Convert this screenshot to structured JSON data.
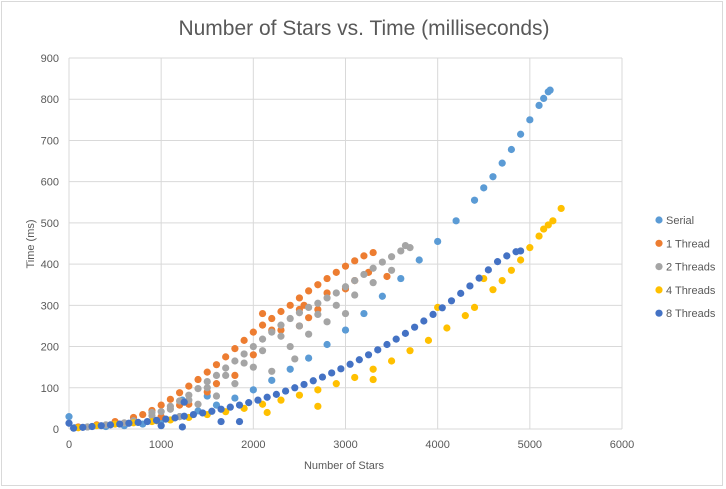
{
  "chart_data": {
    "type": "scatter",
    "title": "Number of Stars vs. Time (milliseconds)",
    "xlabel": "Number of Stars",
    "ylabel": "Time (ms)",
    "xlim": [
      0,
      6000
    ],
    "ylim": [
      0,
      900
    ],
    "xticks": [
      0,
      1000,
      2000,
      3000,
      4000,
      5000,
      6000
    ],
    "yticks": [
      0,
      100,
      200,
      300,
      400,
      500,
      600,
      700,
      800,
      900
    ],
    "grid": true,
    "legend_position": "right",
    "series": [
      {
        "name": "Serial",
        "color": "#5B9BD5",
        "points": [
          [
            60,
            3
          ],
          [
            200,
            5
          ],
          [
            400,
            6
          ],
          [
            600,
            8
          ],
          [
            800,
            12
          ],
          [
            1000,
            20
          ],
          [
            1200,
            30
          ],
          [
            1400,
            44
          ],
          [
            1600,
            58
          ],
          [
            1800,
            75
          ],
          [
            2000,
            95
          ],
          [
            2200,
            118
          ],
          [
            2400,
            145
          ],
          [
            2600,
            172
          ],
          [
            2800,
            205
          ],
          [
            3000,
            240
          ],
          [
            3200,
            280
          ],
          [
            3400,
            322
          ],
          [
            3600,
            365
          ],
          [
            3800,
            410
          ],
          [
            4000,
            455
          ],
          [
            4200,
            505
          ],
          [
            4400,
            555
          ],
          [
            4500,
            585
          ],
          [
            4600,
            612
          ],
          [
            4700,
            645
          ],
          [
            4800,
            678
          ],
          [
            4900,
            715
          ],
          [
            5000,
            750
          ],
          [
            5100,
            785
          ],
          [
            5150,
            802
          ],
          [
            5200,
            818
          ],
          [
            5220,
            822
          ],
          [
            0,
            30
          ],
          [
            1230,
            70
          ],
          [
            1500,
            80
          ]
        ]
      },
      {
        "name": "1 Thread",
        "color": "#ED7D31",
        "points": [
          [
            100,
            5
          ],
          [
            300,
            10
          ],
          [
            500,
            18
          ],
          [
            700,
            28
          ],
          [
            800,
            35
          ],
          [
            900,
            45
          ],
          [
            1000,
            58
          ],
          [
            1100,
            72
          ],
          [
            1200,
            88
          ],
          [
            1300,
            104
          ],
          [
            1400,
            120
          ],
          [
            1500,
            138
          ],
          [
            1600,
            156
          ],
          [
            1700,
            175
          ],
          [
            1800,
            195
          ],
          [
            1900,
            215
          ],
          [
            2000,
            235
          ],
          [
            2100,
            252
          ],
          [
            2200,
            268
          ],
          [
            2300,
            285
          ],
          [
            2400,
            300
          ],
          [
            2500,
            318
          ],
          [
            2600,
            335
          ],
          [
            2700,
            350
          ],
          [
            2800,
            365
          ],
          [
            2900,
            380
          ],
          [
            3000,
            395
          ],
          [
            3100,
            408
          ],
          [
            3200,
            420
          ],
          [
            3300,
            428
          ],
          [
            1000,
            30
          ],
          [
            1300,
            60
          ],
          [
            1600,
            110
          ],
          [
            2000,
            180
          ],
          [
            2100,
            280
          ],
          [
            2300,
            240
          ],
          [
            2500,
            250
          ],
          [
            2550,
            300
          ],
          [
            2700,
            290
          ],
          [
            2800,
            330
          ],
          [
            3000,
            340
          ],
          [
            3100,
            360
          ],
          [
            3250,
            380
          ],
          [
            3450,
            370
          ],
          [
            1500,
            90
          ],
          [
            1800,
            130
          ],
          [
            2500,
            290
          ],
          [
            2600,
            270
          ],
          [
            1200,
            58
          ],
          [
            2200,
            240
          ]
        ]
      },
      {
        "name": "2 Threads",
        "color": "#A5A5A5",
        "points": [
          [
            200,
            5
          ],
          [
            400,
            10
          ],
          [
            600,
            15
          ],
          [
            700,
            20
          ],
          [
            900,
            32
          ],
          [
            1000,
            42
          ],
          [
            1100,
            55
          ],
          [
            1200,
            68
          ],
          [
            1300,
            82
          ],
          [
            1400,
            98
          ],
          [
            1500,
            115
          ],
          [
            1600,
            130
          ],
          [
            1700,
            148
          ],
          [
            1800,
            165
          ],
          [
            1900,
            182
          ],
          [
            2000,
            200
          ],
          [
            2100,
            218
          ],
          [
            2200,
            235
          ],
          [
            2300,
            252
          ],
          [
            2400,
            268
          ],
          [
            2500,
            282
          ],
          [
            2600,
            295
          ],
          [
            2700,
            305
          ],
          [
            2800,
            318
          ],
          [
            2900,
            330
          ],
          [
            3000,
            345
          ],
          [
            3100,
            360
          ],
          [
            3200,
            375
          ],
          [
            3300,
            390
          ],
          [
            3400,
            405
          ],
          [
            3500,
            418
          ],
          [
            3600,
            432
          ],
          [
            3650,
            445
          ],
          [
            3700,
            440
          ],
          [
            900,
            40
          ],
          [
            1100,
            48
          ],
          [
            1300,
            70
          ],
          [
            1500,
            100
          ],
          [
            1700,
            130
          ],
          [
            1900,
            160
          ],
          [
            2100,
            190
          ],
          [
            2300,
            225
          ],
          [
            2500,
            250
          ],
          [
            2700,
            278
          ],
          [
            2900,
            300
          ],
          [
            3100,
            325
          ],
          [
            3300,
            355
          ],
          [
            3500,
            385
          ],
          [
            1200,
            30
          ],
          [
            1800,
            110
          ],
          [
            2000,
            150
          ],
          [
            2400,
            200
          ],
          [
            2600,
            230
          ],
          [
            2800,
            260
          ],
          [
            3000,
            280
          ],
          [
            1400,
            60
          ],
          [
            2200,
            140
          ],
          [
            2450,
            170
          ],
          [
            1600,
            80
          ]
        ]
      },
      {
        "name": "4 Threads",
        "color": "#FFC000",
        "points": [
          [
            100,
            3
          ],
          [
            300,
            8
          ],
          [
            500,
            12
          ],
          [
            700,
            15
          ],
          [
            900,
            18
          ],
          [
            1100,
            22
          ],
          [
            1300,
            28
          ],
          [
            1500,
            35
          ],
          [
            1700,
            42
          ],
          [
            1900,
            50
          ],
          [
            2100,
            60
          ],
          [
            2300,
            70
          ],
          [
            2500,
            82
          ],
          [
            2700,
            95
          ],
          [
            2900,
            110
          ],
          [
            3100,
            125
          ],
          [
            3300,
            145
          ],
          [
            3500,
            165
          ],
          [
            3700,
            190
          ],
          [
            3900,
            215
          ],
          [
            4100,
            245
          ],
          [
            4300,
            275
          ],
          [
            4400,
            295
          ],
          [
            4500,
            365
          ],
          [
            4600,
            338
          ],
          [
            4700,
            360
          ],
          [
            4800,
            385
          ],
          [
            4900,
            410
          ],
          [
            5000,
            440
          ],
          [
            5100,
            468
          ],
          [
            5150,
            485
          ],
          [
            5200,
            495
          ],
          [
            5250,
            505
          ],
          [
            5340,
            535
          ],
          [
            950,
            20
          ],
          [
            2150,
            40
          ],
          [
            3300,
            120
          ],
          [
            2700,
            55
          ],
          [
            4000,
            295
          ]
        ]
      },
      {
        "name": "8 Threads",
        "color": "#4472C4",
        "points": [
          [
            50,
            2
          ],
          [
            150,
            4
          ],
          [
            250,
            6
          ],
          [
            350,
            8
          ],
          [
            450,
            10
          ],
          [
            550,
            12
          ],
          [
            650,
            14
          ],
          [
            750,
            16
          ],
          [
            850,
            18
          ],
          [
            950,
            21
          ],
          [
            1050,
            24
          ],
          [
            1150,
            27
          ],
          [
            1250,
            31
          ],
          [
            1350,
            35
          ],
          [
            1450,
            39
          ],
          [
            1550,
            43
          ],
          [
            1650,
            48
          ],
          [
            1750,
            53
          ],
          [
            1850,
            58
          ],
          [
            1950,
            64
          ],
          [
            2050,
            70
          ],
          [
            2150,
            77
          ],
          [
            2250,
            84
          ],
          [
            2350,
            92
          ],
          [
            2450,
            100
          ],
          [
            2550,
            108
          ],
          [
            2650,
            117
          ],
          [
            2750,
            126
          ],
          [
            2850,
            136
          ],
          [
            2950,
            146
          ],
          [
            3050,
            157
          ],
          [
            3150,
            168
          ],
          [
            3250,
            180
          ],
          [
            3350,
            192
          ],
          [
            3450,
            205
          ],
          [
            3550,
            218
          ],
          [
            3650,
            232
          ],
          [
            3750,
            247
          ],
          [
            3850,
            262
          ],
          [
            3950,
            278
          ],
          [
            4050,
            294
          ],
          [
            4150,
            311
          ],
          [
            4250,
            329
          ],
          [
            4350,
            347
          ],
          [
            4450,
            366
          ],
          [
            4550,
            386
          ],
          [
            4650,
            406
          ],
          [
            4750,
            420
          ],
          [
            4850,
            430
          ],
          [
            4900,
            432
          ],
          [
            0,
            14
          ],
          [
            1250,
            65
          ],
          [
            1650,
            18
          ],
          [
            1850,
            18
          ],
          [
            1230,
            5
          ],
          [
            1000,
            8
          ]
        ]
      }
    ]
  }
}
